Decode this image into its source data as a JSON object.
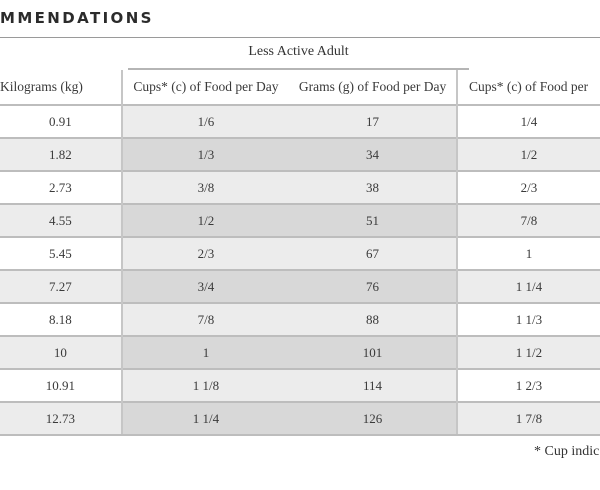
{
  "heading": "MMENDATIONS",
  "group_label": "Less Active Adult",
  "columns": [
    "Kilograms (kg)",
    "Cups* (c) of Food per Day",
    "Grams (g) of Food per Day",
    "Cups* (c) of Food per"
  ],
  "rows": [
    [
      "0.91",
      "1/6",
      "17",
      "1/4"
    ],
    [
      "1.82",
      "1/3",
      "34",
      "1/2"
    ],
    [
      "2.73",
      "3/8",
      "38",
      "2/3"
    ],
    [
      "4.55",
      "1/2",
      "51",
      "7/8"
    ],
    [
      "5.45",
      "2/3",
      "67",
      "1"
    ],
    [
      "7.27",
      "3/4",
      "76",
      "1 1/4"
    ],
    [
      "8.18",
      "7/8",
      "88",
      "1 1/3"
    ],
    [
      "10",
      "1",
      "101",
      "1 1/2"
    ],
    [
      "10.91",
      "1 1/8",
      "114",
      "1 2/3"
    ],
    [
      "12.73",
      "1 1/4",
      "126",
      "1 7/8"
    ]
  ],
  "footnote": "* Cup indic"
}
